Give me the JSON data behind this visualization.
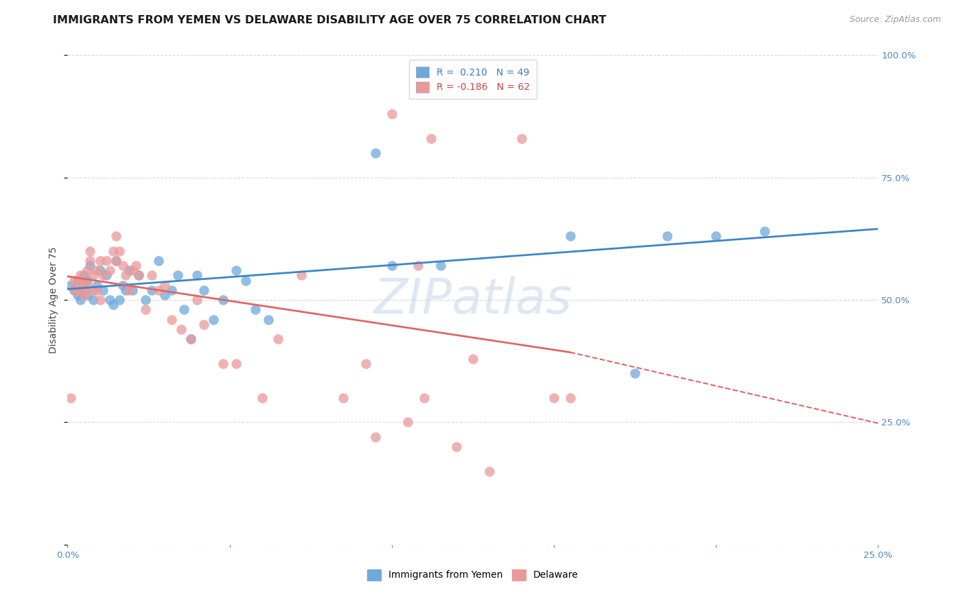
{
  "title": "IMMIGRANTS FROM YEMEN VS DELAWARE DISABILITY AGE OVER 75 CORRELATION CHART",
  "source": "Source: ZipAtlas.com",
  "ylabel": "Disability Age Over 75",
  "x_min": 0.0,
  "x_max": 0.25,
  "y_min": 0.0,
  "y_max": 1.0,
  "x_ticks": [
    0.0,
    0.05,
    0.1,
    0.15,
    0.2,
    0.25
  ],
  "x_ticklabels": [
    "0.0%",
    "",
    "",
    "",
    "",
    "25.0%"
  ],
  "y_ticks": [
    0.0,
    0.25,
    0.5,
    0.75,
    1.0
  ],
  "y_ticklabels_right": [
    "",
    "25.0%",
    "50.0%",
    "75.0%",
    "100.0%"
  ],
  "legend_entries": [
    {
      "label": "R =  0.210   N = 49",
      "color": "#6fa8dc"
    },
    {
      "label": "R = -0.186   N = 62",
      "color": "#ea9999"
    }
  ],
  "series_blue": {
    "color": "#6fa8dc",
    "x": [
      0.001,
      0.002,
      0.003,
      0.003,
      0.004,
      0.004,
      0.005,
      0.005,
      0.006,
      0.006,
      0.007,
      0.008,
      0.009,
      0.01,
      0.011,
      0.012,
      0.013,
      0.014,
      0.015,
      0.016,
      0.017,
      0.018,
      0.019,
      0.02,
      0.022,
      0.024,
      0.026,
      0.028,
      0.03,
      0.032,
      0.034,
      0.036,
      0.038,
      0.04,
      0.042,
      0.045,
      0.048,
      0.052,
      0.055,
      0.058,
      0.062,
      0.095,
      0.1,
      0.115,
      0.155,
      0.175,
      0.185,
      0.2,
      0.215
    ],
    "y": [
      0.53,
      0.52,
      0.54,
      0.51,
      0.52,
      0.5,
      0.53,
      0.55,
      0.51,
      0.54,
      0.57,
      0.5,
      0.53,
      0.56,
      0.52,
      0.55,
      0.5,
      0.49,
      0.58,
      0.5,
      0.53,
      0.52,
      0.56,
      0.52,
      0.55,
      0.5,
      0.52,
      0.58,
      0.51,
      0.52,
      0.55,
      0.48,
      0.42,
      0.55,
      0.52,
      0.46,
      0.5,
      0.56,
      0.54,
      0.48,
      0.46,
      0.8,
      0.57,
      0.57,
      0.63,
      0.35,
      0.63,
      0.63,
      0.64
    ],
    "trendline": {
      "x0": 0.0,
      "y0": 0.522,
      "x1": 0.25,
      "y1": 0.645
    }
  },
  "series_pink": {
    "color": "#ea9999",
    "x": [
      0.001,
      0.002,
      0.002,
      0.003,
      0.003,
      0.004,
      0.004,
      0.005,
      0.005,
      0.005,
      0.006,
      0.006,
      0.006,
      0.007,
      0.007,
      0.008,
      0.008,
      0.009,
      0.009,
      0.01,
      0.01,
      0.011,
      0.012,
      0.013,
      0.014,
      0.015,
      0.015,
      0.016,
      0.017,
      0.018,
      0.019,
      0.02,
      0.021,
      0.022,
      0.024,
      0.026,
      0.028,
      0.03,
      0.032,
      0.035,
      0.038,
      0.04,
      0.042,
      0.048,
      0.052,
      0.06,
      0.065,
      0.072,
      0.085,
      0.092,
      0.095,
      0.1,
      0.105,
      0.108,
      0.11,
      0.112,
      0.12,
      0.125,
      0.13,
      0.14,
      0.15,
      0.155
    ],
    "y": [
      0.3,
      0.54,
      0.52,
      0.54,
      0.52,
      0.55,
      0.52,
      0.53,
      0.51,
      0.54,
      0.53,
      0.56,
      0.52,
      0.6,
      0.58,
      0.55,
      0.52,
      0.56,
      0.52,
      0.58,
      0.5,
      0.55,
      0.58,
      0.56,
      0.6,
      0.63,
      0.58,
      0.6,
      0.57,
      0.55,
      0.52,
      0.56,
      0.57,
      0.55,
      0.48,
      0.55,
      0.52,
      0.53,
      0.46,
      0.44,
      0.42,
      0.5,
      0.45,
      0.37,
      0.37,
      0.3,
      0.42,
      0.55,
      0.3,
      0.37,
      0.22,
      0.88,
      0.25,
      0.57,
      0.3,
      0.83,
      0.2,
      0.38,
      0.15,
      0.83,
      0.3,
      0.3
    ],
    "trendline": {
      "x0": 0.0,
      "y0": 0.548,
      "x1": 0.155,
      "y1": 0.393
    },
    "trendline_dashed": {
      "x0": 0.155,
      "y0": 0.393,
      "x1": 0.25,
      "y1": 0.248
    }
  },
  "watermark_text": "ZIPatlas",
  "watermark_color": "#c8d8ec",
  "grid_color": "#d8d8d8",
  "background_color": "#ffffff",
  "title_fontsize": 11.5,
  "axis_label_fontsize": 10,
  "tick_fontsize": 9.5,
  "legend_fontsize": 10,
  "source_fontsize": 9
}
